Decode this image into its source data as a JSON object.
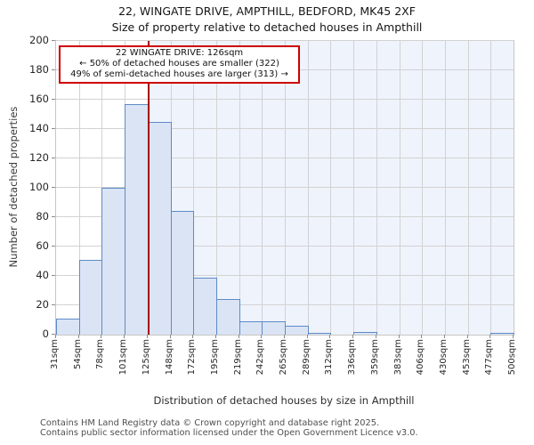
{
  "chart_data": {
    "type": "bar",
    "subtype": "histogram",
    "title": "22, WINGATE DRIVE, AMPTHILL, BEDFORD, MK45 2XF",
    "subtitle": "Size of property relative to detached houses in Ampthill",
    "categories": [
      "31sqm",
      "54sqm",
      "78sqm",
      "101sqm",
      "125sqm",
      "148sqm",
      "172sqm",
      "195sqm",
      "219sqm",
      "242sqm",
      "265sqm",
      "289sqm",
      "312sqm",
      "336sqm",
      "359sqm",
      "383sqm",
      "406sqm",
      "430sqm",
      "453sqm",
      "477sqm",
      "500sqm"
    ],
    "values": [
      11,
      51,
      100,
      157,
      145,
      84,
      39,
      24,
      9,
      9,
      6,
      1,
      0,
      2,
      0,
      0,
      0,
      0,
      0,
      1
    ],
    "xlabel": "Distribution of detached houses by size in Ampthill",
    "ylabel": "Number of detached properties",
    "ylim": [
      0,
      200
    ],
    "ytick_step": 20,
    "grid": "on",
    "legend": "none",
    "marker": {
      "label": "22 WINGATE DRIVE",
      "value_sqm": 126,
      "axis_min_sqm": 31,
      "axis_max_sqm": 500
    },
    "annotation": {
      "line1": "22 WINGATE DRIVE: 126sqm",
      "line2": "← 50% of detached houses are smaller (322)",
      "line3": "49% of semi-detached houses are larger (313) →"
    },
    "colors": {
      "bar_fill": "#dbe4f4",
      "bar_border": "#5e8bc7",
      "marker_line": "#aa0000",
      "annotation_border": "#cc0000",
      "shade_right_of_marker": "#eff3fc",
      "grid": "#d2d2d2",
      "spine": "#c6c6c6"
    }
  },
  "footer": {
    "line1": "Contains HM Land Registry data © Crown copyright and database right 2025.",
    "line2": "Contains public sector information licensed under the Open Government Licence v3.0."
  }
}
